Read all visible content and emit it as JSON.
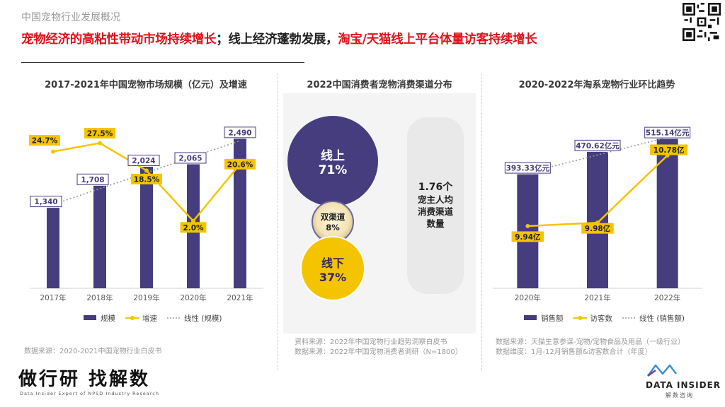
{
  "section_title": "中国宠物行业发展概况",
  "headline": {
    "part1": "宠物经济的高粘性带动市场持续增长",
    "part2": "；线上经济蓬勃发展，",
    "part3": "淘宝/天猫线上平台体量访客持续增长"
  },
  "colors": {
    "bar": "#453d7e",
    "line": "#f5c400",
    "accent": "#e0101a",
    "grey": "#9a9a9a"
  },
  "chart_data": [
    {
      "type": "bar",
      "title": "2017-2021年中国宠物市场规模（亿元）及增速",
      "categories": [
        "2017年",
        "2018年",
        "2019年",
        "2020年",
        "2021年"
      ],
      "series": [
        {
          "name": "规模",
          "kind": "bar",
          "values": [
            1340,
            1708,
            2024,
            2065,
            2490
          ],
          "labels": [
            "1,340",
            "1,708",
            "2,024",
            "2,065",
            "2,490"
          ]
        },
        {
          "name": "增速",
          "kind": "line",
          "values": [
            24.7,
            27.5,
            18.5,
            2.0,
            20.6
          ],
          "labels": [
            "24.7%",
            "27.5%",
            "18.5%",
            "2.0%",
            "20.6%"
          ]
        },
        {
          "name": "线性 (规模)",
          "kind": "trendline"
        }
      ],
      "ylim": [
        0,
        2800
      ],
      "y2lim": [
        -20,
        35
      ],
      "source": "数据来源：2020-2021中国宠物行业白皮书"
    },
    {
      "type": "bubble",
      "title": "2022中国消费者宠物消费渠道分布",
      "items": [
        {
          "label": "线上",
          "value": "71%"
        },
        {
          "label": "双渠道",
          "value": "8%"
        },
        {
          "label": "线下",
          "value": "37%"
        }
      ],
      "side_note": [
        "1.76个",
        "宠主人均",
        "消费渠道",
        "数量"
      ],
      "sources": [
        "资料来源：2022年中国宠物行业趋势洞察白皮书",
        "数据来源：2022年中国宠物消费者调研（N=1800）"
      ]
    },
    {
      "type": "bar",
      "title": "2020-2022年淘系宠物行业环比趋势",
      "categories": [
        "2020年",
        "2021年",
        "2022年"
      ],
      "series": [
        {
          "name": "销售额",
          "kind": "bar",
          "values": [
            393.33,
            470.62,
            515.14
          ],
          "labels": [
            "393.33亿元",
            "470.62亿元",
            "515.14亿元"
          ]
        },
        {
          "name": "访客数",
          "kind": "line",
          "values": [
            9.94,
            9.98,
            10.78
          ],
          "labels": [
            "9.94亿",
            "9.98亿",
            "10.78亿"
          ]
        },
        {
          "name": "线性 (销售额)",
          "kind": "trendline"
        }
      ],
      "ylim": [
        0,
        580
      ],
      "y2lim": [
        9.2,
        11.2
      ],
      "sources": [
        "数据来源：天猫生意参谋-宠物/宠物食品及用品（一级行业）",
        "数据维度：1月-12月销售额&访客数合计（年度）"
      ]
    }
  ],
  "branding": {
    "left_logo": "做行研 找解数",
    "left_logo_sub": "Data Insider Expert of NPSD Industry Research",
    "right_logo": "DATA INSIDER",
    "right_logo_sub": "解数咨询"
  }
}
